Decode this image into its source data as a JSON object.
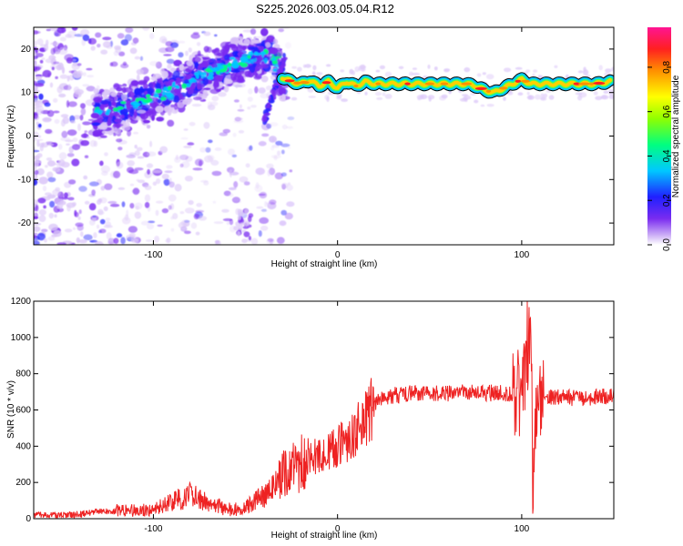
{
  "chart_data": [
    {
      "type": "heatmap",
      "title": "S225.2026.003.05.04.R12",
      "xlabel": "Height of straight line (km)",
      "ylabel": "Frequency (Hz)",
      "xlim": [
        -165,
        150
      ],
      "ylim": [
        -25,
        25
      ],
      "xticks": [
        -100,
        0,
        100
      ],
      "yticks": [
        -20,
        -10,
        0,
        10,
        20
      ],
      "colorbar": {
        "label": "Normalized spectral amplitude",
        "range": [
          0,
          0.98
        ],
        "ticks": [
          "0.0",
          "0.2",
          "0.4",
          "0.6",
          "0.8"
        ],
        "tick_values": [
          0.0,
          0.2,
          0.4,
          0.6,
          0.8
        ],
        "colors": [
          "#dcc8f8",
          "#7a2cf0",
          "#2020ff",
          "#00c8ff",
          "#00ff80",
          "#90ff00",
          "#ffff00",
          "#ff9000",
          "#ff2020",
          "#ff1493"
        ]
      },
      "track": {
        "x": [
          -132,
          -120,
          -110,
          -100,
          -90,
          -80,
          -70,
          -60,
          -50,
          -40,
          -35,
          -30,
          -25,
          -20,
          -15,
          -10,
          -5,
          0,
          5,
          10,
          15,
          20,
          30,
          40,
          50,
          60,
          70,
          75,
          80,
          85,
          90,
          95,
          100,
          105,
          110,
          120,
          130,
          140,
          148
        ],
        "y": [
          4.5,
          6.0,
          7.5,
          9.0,
          10.5,
          12.5,
          14.5,
          16.5,
          17.5,
          18.5,
          18.8,
          13.5,
          12.5,
          12.0,
          12.8,
          11.5,
          12.5,
          11.0,
          12.5,
          11.5,
          12.5,
          12.0,
          12.0,
          12.0,
          12.0,
          12.0,
          12.0,
          11.5,
          10.5,
          10.0,
          11.0,
          12.0,
          13.0,
          12.0,
          12.0,
          12.0,
          12.0,
          12.0,
          12.5
        ]
      }
    },
    {
      "type": "line",
      "xlabel": "Height of straight line (km)",
      "ylabel": "SNR (10 * v/v)",
      "xlim": [
        -165,
        150
      ],
      "ylim": [
        0,
        1200
      ],
      "xticks": [
        -100,
        0,
        100
      ],
      "yticks": [
        0,
        200,
        400,
        600,
        800,
        1000,
        1200
      ],
      "color": "#ee2222",
      "x": [
        -165,
        -150,
        -140,
        -130,
        -120,
        -110,
        -100,
        -95,
        -90,
        -85,
        -80,
        -75,
        -70,
        -65,
        -60,
        -55,
        -50,
        -45,
        -40,
        -35,
        -30,
        -25,
        -20,
        -15,
        -10,
        -5,
        0,
        5,
        10,
        15,
        20,
        25,
        30,
        40,
        50,
        60,
        70,
        80,
        90,
        95,
        100,
        102,
        104,
        105,
        106,
        108,
        110,
        120,
        130,
        140,
        150
      ],
      "y": [
        20,
        20,
        25,
        40,
        45,
        45,
        55,
        80,
        90,
        110,
        130,
        110,
        80,
        70,
        50,
        55,
        70,
        90,
        130,
        160,
        240,
        280,
        300,
        320,
        360,
        380,
        400,
        430,
        480,
        560,
        630,
        670,
        680,
        690,
        690,
        690,
        700,
        695,
        690,
        695,
        700,
        900,
        1050,
        1200,
        260,
        600,
        670,
        670,
        665,
        670,
        675
      ]
    }
  ]
}
